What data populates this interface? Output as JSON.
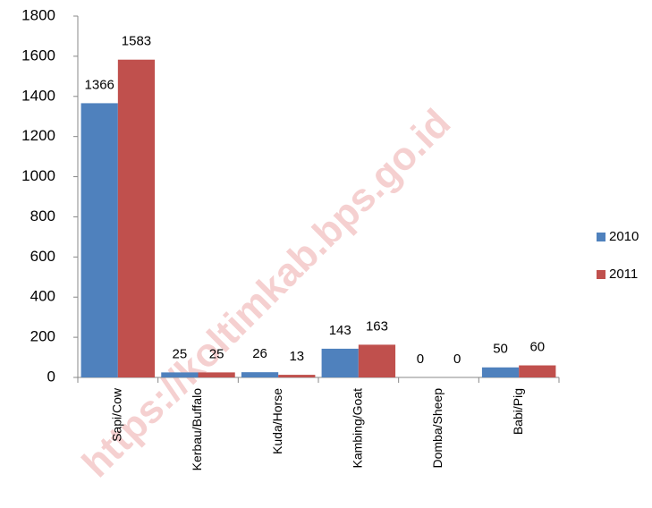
{
  "chart_data": {
    "type": "bar",
    "categories": [
      "Sapi/Cow",
      "Kerbau/Buffalo",
      "Kuda/Horse",
      "Kambing/Goat",
      "Domba/Sheep",
      "Babi/Pig"
    ],
    "series": [
      {
        "name": "2010",
        "color": "#4f81bd",
        "values": [
          1366,
          25,
          26,
          143,
          0,
          50
        ]
      },
      {
        "name": "2011",
        "color": "#c0504d",
        "values": [
          1583,
          25,
          13,
          163,
          0,
          60
        ]
      }
    ],
    "ylim": [
      0,
      1800
    ],
    "yticks": [
      0,
      200,
      400,
      600,
      800,
      1000,
      1200,
      1400,
      1600,
      1800
    ],
    "grid": false,
    "legend": "right"
  },
  "watermark": "https://koltimkab.bps.go.id"
}
